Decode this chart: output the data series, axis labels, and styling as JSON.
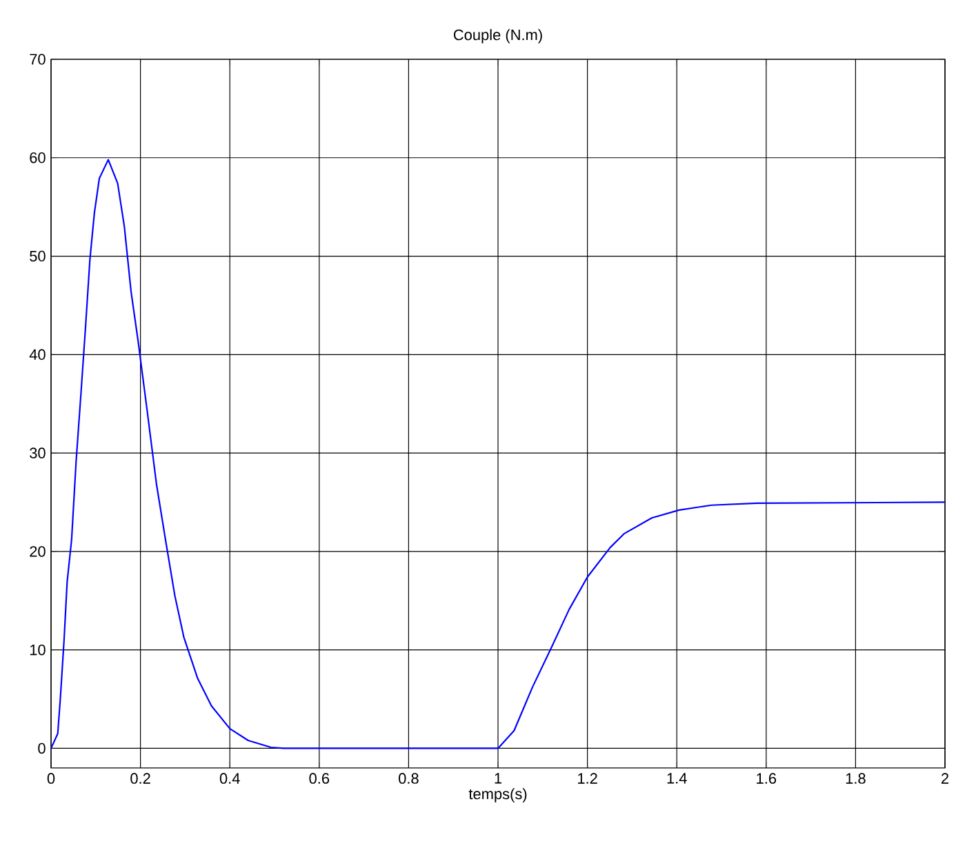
{
  "chart_data": {
    "type": "line",
    "title": "Couple (N.m)",
    "xlabel": "temps(s)",
    "xlim": [
      0,
      2
    ],
    "ylim": [
      -2,
      70
    ],
    "xticks": [
      0,
      0.2,
      0.4,
      0.6,
      0.8,
      1,
      1.2,
      1.4,
      1.6,
      1.8,
      2
    ],
    "yticks": [
      0,
      10,
      20,
      30,
      40,
      50,
      60,
      70
    ],
    "grid": true,
    "series": [
      {
        "color": "#0000ff",
        "x": [
          0,
          0.015,
          0.021,
          0.029,
          0.036,
          0.046,
          0.056,
          0.067,
          0.077,
          0.087,
          0.097,
          0.108,
          0.128,
          0.149,
          0.164,
          0.179,
          0.195,
          0.215,
          0.236,
          0.256,
          0.277,
          0.297,
          0.328,
          0.359,
          0.4,
          0.441,
          0.492,
          0.52,
          1.0,
          1.036,
          1.077,
          1.118,
          1.159,
          1.2,
          1.251,
          1.282,
          1.344,
          1.405,
          1.477,
          1.579,
          2.0
        ],
        "values": [
          0,
          1.5,
          5.2,
          10.9,
          16.9,
          21.2,
          29.1,
          36.1,
          42.7,
          49.7,
          54.4,
          57.9,
          59.8,
          57.4,
          53.0,
          46.4,
          41.3,
          34.3,
          26.8,
          21.2,
          15.5,
          11.3,
          7.1,
          4.3,
          2.0,
          0.8,
          0.1,
          0,
          0,
          1.8,
          6.2,
          10.1,
          14.1,
          17.4,
          20.4,
          21.8,
          23.4,
          24.2,
          24.7,
          24.9,
          25
        ]
      }
    ]
  }
}
